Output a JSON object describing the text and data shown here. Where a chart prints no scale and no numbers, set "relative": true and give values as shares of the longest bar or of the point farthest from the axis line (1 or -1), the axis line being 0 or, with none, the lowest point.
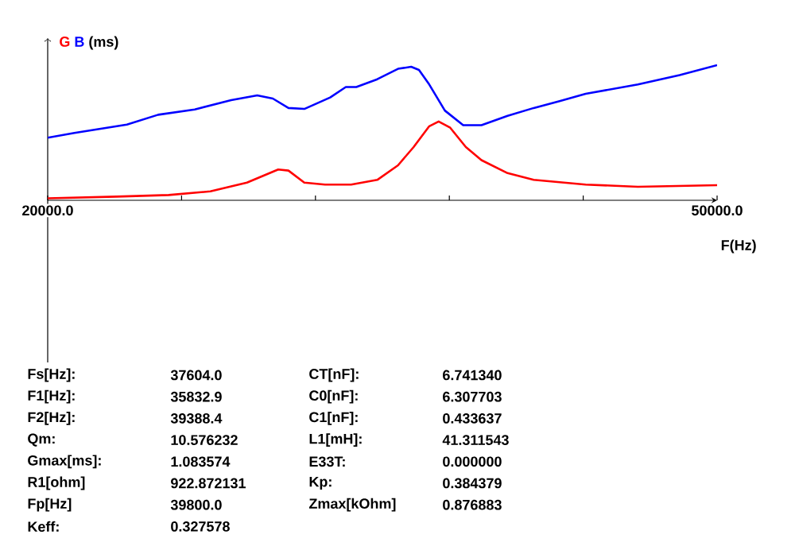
{
  "chart_data": {
    "type": "line",
    "relative": true,
    "ylabel": "(ms)",
    "xlabel": "F(Hz)",
    "xlim": [
      20000,
      50000
    ],
    "xticks": [
      {
        "value": 20000,
        "label": "20000.0"
      },
      {
        "value": 26000,
        "label": null
      },
      {
        "value": 32000,
        "label": null
      },
      {
        "value": 38000,
        "label": null
      },
      {
        "value": 44000,
        "label": null
      },
      {
        "value": 50000,
        "label": "50000.0"
      }
    ],
    "tick_labels": "x",
    "series": [
      {
        "name": "G",
        "color": "#ff0000",
        "x": [
          20000,
          23080,
          25420,
          27290,
          28930,
          30330,
          30790,
          31500,
          32430,
          33600,
          34770,
          35700,
          36400,
          37100,
          37520,
          38040,
          38740,
          39440,
          40610,
          41780,
          44110,
          46450,
          50000
        ],
        "values": [
          0.015,
          0.027,
          0.039,
          0.066,
          0.131,
          0.228,
          0.22,
          0.131,
          0.116,
          0.116,
          0.151,
          0.259,
          0.394,
          0.548,
          0.583,
          0.537,
          0.394,
          0.297,
          0.201,
          0.151,
          0.116,
          0.1,
          0.112
        ]
      },
      {
        "name": "B",
        "color": "#0000ff",
        "x": [
          20000,
          21200,
          23550,
          24950,
          26590,
          28220,
          29390,
          30090,
          30790,
          31500,
          32660,
          33360,
          33830,
          34770,
          35700,
          36290,
          36640,
          37100,
          37800,
          38620,
          39440,
          40610,
          41780,
          42940,
          44110,
          46450,
          48320,
          50000
        ],
        "values": [
          0.463,
          0.498,
          0.56,
          0.633,
          0.672,
          0.741,
          0.776,
          0.753,
          0.683,
          0.676,
          0.761,
          0.838,
          0.838,
          0.896,
          0.973,
          0.988,
          0.965,
          0.857,
          0.664,
          0.556,
          0.556,
          0.625,
          0.683,
          0.734,
          0.788,
          0.857,
          0.927,
          1.0
        ]
      }
    ],
    "annotations": [
      "Fs[Hz]:",
      "37604.0",
      "CT[nF]:",
      "6.741340",
      "F1[Hz]:",
      "35832.9",
      "C0[nF]:",
      "6.307703",
      "F2[Hz]:",
      "39388.4",
      "C1[nF]:",
      "0.433637",
      "Qm:",
      "10.576232",
      "L1[mH]:",
      "41.311543",
      "Gmax[ms]:",
      "1.083574",
      "E33T:",
      "0.000000",
      "R1[ohm]",
      "922.872131",
      "Kp:",
      "0.384379",
      "Fp[Hz]",
      "39800.0",
      "Zmax[kOhm]",
      "0.876883",
      "Keff:",
      "0.327578"
    ]
  }
}
